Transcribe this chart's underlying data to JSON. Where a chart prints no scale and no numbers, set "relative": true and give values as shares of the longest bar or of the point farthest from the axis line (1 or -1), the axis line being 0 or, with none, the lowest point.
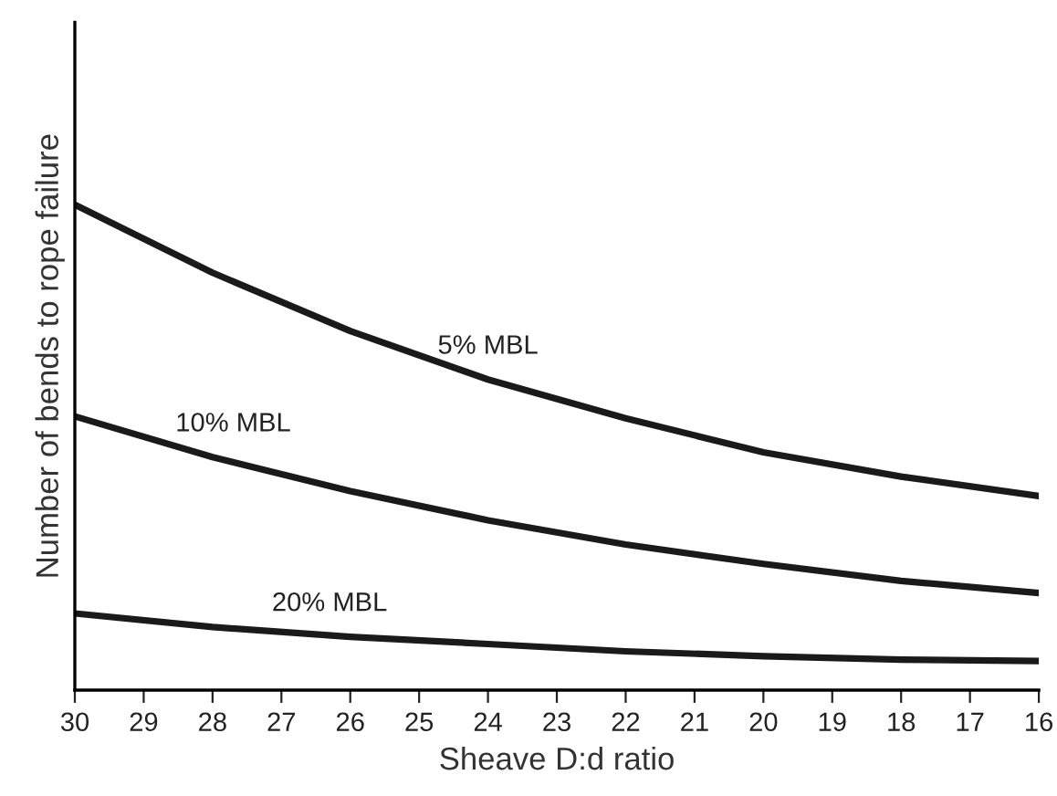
{
  "chart_data": {
    "type": "line",
    "relative": true,
    "xlabel": "Sheave D:d ratio",
    "ylabel": "Number of bends to rope failure",
    "x": [
      30,
      28,
      26,
      24,
      22,
      20,
      18,
      16
    ],
    "xlim": [
      30,
      16
    ],
    "xticks": [
      30,
      29,
      28,
      27,
      26,
      25,
      24,
      23,
      22,
      21,
      20,
      19,
      18,
      17,
      16
    ],
    "grid": false,
    "legend": false,
    "marker": "none",
    "line_style": "solid",
    "series": [
      {
        "name": "5% MBL",
        "color": "#1a1a1a",
        "values": [
          1.0,
          0.86,
          0.74,
          0.64,
          0.56,
          0.49,
          0.44,
          0.4
        ]
      },
      {
        "name": "10% MBL",
        "color": "#1a1a1a",
        "values": [
          0.564,
          0.48,
          0.41,
          0.35,
          0.3,
          0.26,
          0.225,
          0.2
        ]
      },
      {
        "name": "20% MBL",
        "color": "#1a1a1a",
        "values": [
          0.158,
          0.13,
          0.11,
          0.095,
          0.08,
          0.07,
          0.063,
          0.06
        ]
      }
    ]
  }
}
